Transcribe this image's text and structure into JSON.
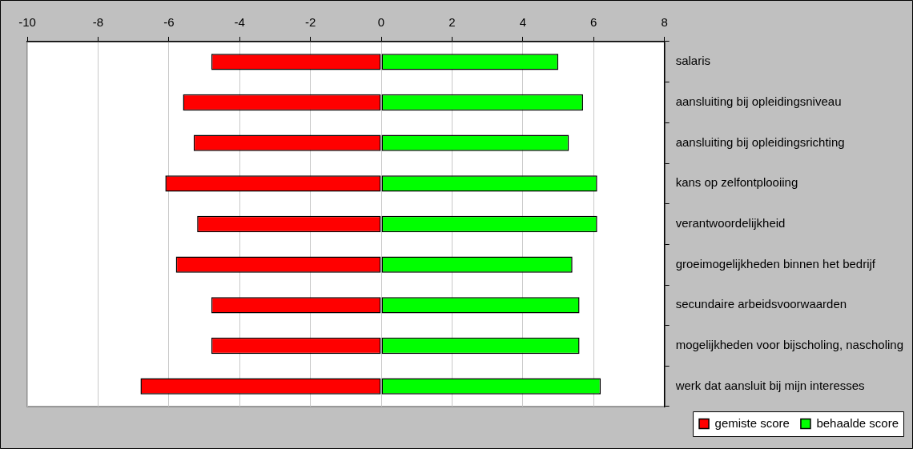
{
  "chart_data": {
    "type": "bar",
    "orientation": "horizontal",
    "stacked": true,
    "categories": [
      "salaris",
      "aansluiting bij opleidingsniveau",
      "aansluiting bij opleidingsrichting",
      "kans op zelfontplooiing",
      "verantwoordelijkheid",
      "groeimogelijkheden binnen het bedrijf",
      "secundaire arbeidsvoorwaarden",
      "mogelijkheden voor bijscholing, nascholing",
      "werk dat aansluit bij mijn interesses"
    ],
    "series": [
      {
        "name": "gemiste score",
        "color": "#ff0000",
        "values": [
          -4.8,
          -5.6,
          -5.3,
          -6.1,
          -5.2,
          -5.8,
          -4.8,
          -4.8,
          -6.8
        ]
      },
      {
        "name": "behaalde score",
        "color": "#00ff00",
        "values": [
          5.0,
          5.7,
          5.3,
          6.1,
          6.1,
          5.4,
          5.6,
          5.6,
          6.2
        ]
      }
    ],
    "xlim": [
      -10,
      8
    ],
    "xticks": [
      -10,
      -8,
      -6,
      -4,
      -2,
      0,
      2,
      4,
      6,
      8
    ],
    "grid": "x",
    "legend": "bottom right"
  }
}
